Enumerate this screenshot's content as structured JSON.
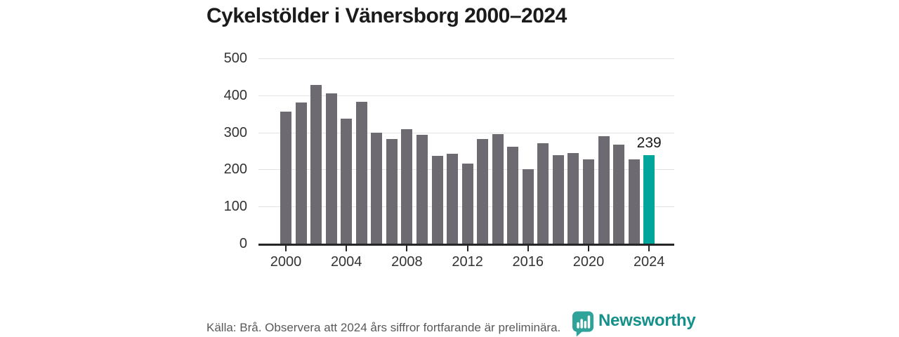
{
  "title": "Cykelstölder i Vänersborg 2000–2024",
  "footer": {
    "source_note": "Källa: Brå. Observera att 2024 års siffror fortfarande är preliminära."
  },
  "branding": {
    "logo_text": "Newsworthy",
    "logo_icon": "bar-chart-pin-icon"
  },
  "colors": {
    "bar": "#6d6a71",
    "highlight": "#00a59b",
    "gridline": "#e3e3e3",
    "axis_line": "#262626",
    "title_text": "#1b1b1b",
    "axis_text": "#333333",
    "footer_text": "#595959",
    "logo_teal": "#2fa29a",
    "logo_text_teal": "#15908a"
  },
  "chart_data": {
    "type": "bar",
    "title": "Cykelstölder i Vänersborg 2000–2024",
    "xlabel": "",
    "ylabel": "",
    "ylim": [
      0,
      500
    ],
    "yticks": [
      0,
      100,
      200,
      300,
      400,
      500
    ],
    "xticks": [
      2000,
      2004,
      2008,
      2012,
      2016,
      2020,
      2024
    ],
    "grid": "horizontal",
    "legend": "none",
    "years": [
      2000,
      2001,
      2002,
      2003,
      2004,
      2005,
      2006,
      2007,
      2008,
      2009,
      2010,
      2011,
      2012,
      2013,
      2014,
      2015,
      2016,
      2017,
      2018,
      2019,
      2020,
      2021,
      2022,
      2023,
      2024
    ],
    "values": [
      356,
      381,
      429,
      406,
      338,
      382,
      299,
      282,
      308,
      293,
      236,
      243,
      215,
      282,
      296,
      261,
      200,
      271,
      239,
      245,
      227,
      290,
      268,
      228,
      239
    ],
    "highlight_year": 2024,
    "highlight_value_label": "239"
  }
}
